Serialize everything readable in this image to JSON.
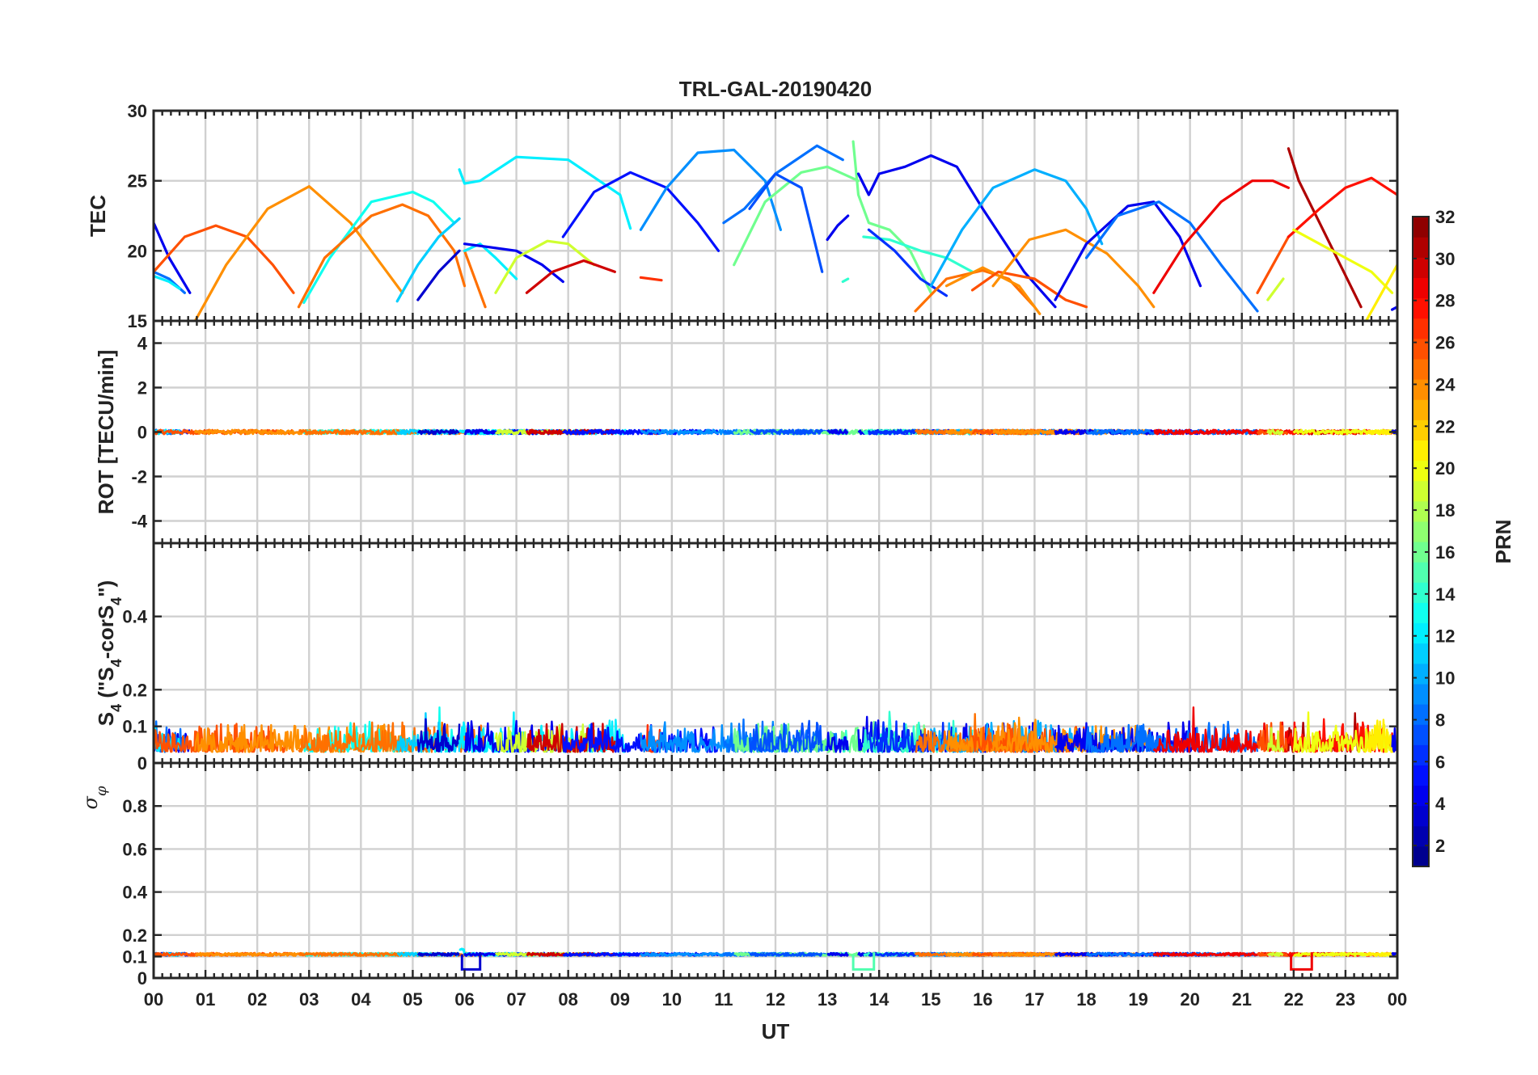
{
  "chart_data": {
    "type": "line",
    "title": "TRL-GAL-20190420",
    "xlabel": "UT",
    "xlim": [
      0,
      24
    ],
    "x_tick_labels": [
      "00",
      "01",
      "02",
      "03",
      "04",
      "05",
      "06",
      "07",
      "08",
      "09",
      "10",
      "11",
      "12",
      "13",
      "14",
      "15",
      "16",
      "17",
      "18",
      "19",
      "20",
      "21",
      "22",
      "23",
      "00"
    ],
    "colorbar": {
      "label": "PRN",
      "range": [
        1,
        32
      ],
      "tick_labels": [
        "2",
        "4",
        "6",
        "8",
        "10",
        "12",
        "14",
        "16",
        "18",
        "20",
        "22",
        "24",
        "26",
        "28",
        "30",
        "32"
      ]
    },
    "panels": [
      {
        "ylabel": "TEC",
        "ylim": [
          15,
          30
        ],
        "y_tick_labels": [
          "15",
          "20",
          "25",
          "30"
        ],
        "grid": true,
        "series": [
          {
            "prn": 4,
            "x": [
              0.0,
              0.3,
              0.7
            ],
            "y": [
              22.0,
              19.5,
              17.0
            ]
          },
          {
            "prn": 8,
            "x": [
              0.0,
              0.3,
              0.6
            ],
            "y": [
              18.5,
              18.0,
              17.0
            ]
          },
          {
            "prn": 12,
            "x": [
              0.0,
              0.3,
              0.5
            ],
            "y": [
              18.2,
              17.8,
              17.3
            ]
          },
          {
            "prn": 26,
            "x": [
              0.0,
              0.6,
              1.2,
              1.8,
              2.3,
              2.7
            ],
            "y": [
              18.5,
              21.0,
              21.8,
              21.0,
              19.0,
              17.0
            ]
          },
          {
            "prn": 24,
            "x": [
              0.8,
              1.4,
              2.2,
              3.0,
              3.8,
              4.4,
              4.8
            ],
            "y": [
              15.0,
              19.0,
              23.0,
              24.6,
              22.0,
              19.0,
              17.0
            ]
          },
          {
            "prn": 13,
            "x": [
              2.9,
              3.4,
              4.2,
              5.0,
              5.4,
              5.8
            ],
            "y": [
              16.3,
              19.5,
              23.5,
              24.2,
              23.5,
              22.0
            ]
          },
          {
            "prn": 25,
            "x": [
              2.8,
              3.3,
              4.2,
              4.8,
              5.3,
              5.8,
              6.0
            ],
            "y": [
              16.0,
              19.5,
              22.5,
              23.3,
              22.5,
              20.0,
              17.5
            ]
          },
          {
            "prn": 11,
            "x": [
              4.7,
              5.1,
              5.5,
              5.9
            ],
            "y": [
              16.4,
              19.0,
              21.0,
              22.3
            ]
          },
          {
            "prn": 3,
            "x": [
              5.1,
              5.5,
              5.9
            ],
            "y": [
              16.5,
              18.5,
              20.0
            ]
          },
          {
            "prn": 12,
            "x": [
              5.9,
              6.0,
              6.3,
              7.0,
              8.0,
              9.0,
              9.2
            ],
            "y": [
              25.8,
              24.8,
              25.0,
              26.7,
              26.5,
              24.0,
              21.6
            ]
          },
          {
            "prn": 25,
            "x": [
              6.0,
              6.2,
              6.4
            ],
            "y": [
              20.0,
              18.0,
              16.0
            ]
          },
          {
            "prn": 12,
            "x": [
              6.0,
              6.3,
              6.6,
              7.0
            ],
            "y": [
              20.0,
              20.5,
              19.5,
              18.0
            ]
          },
          {
            "prn": 4,
            "x": [
              6.0,
              6.4,
              7.0,
              7.5,
              7.9
            ],
            "y": [
              20.5,
              20.3,
              20.0,
              19.0,
              17.8
            ]
          },
          {
            "prn": 19,
            "x": [
              6.6,
              7.0,
              7.6,
              8.0,
              8.5
            ],
            "y": [
              17.0,
              19.5,
              20.7,
              20.5,
              19.0
            ]
          },
          {
            "prn": 30,
            "x": [
              7.2,
              7.7,
              8.3,
              8.9
            ],
            "y": [
              17.0,
              18.5,
              19.3,
              18.5
            ]
          },
          {
            "prn": 27,
            "x": [
              9.4,
              9.8
            ],
            "y": [
              18.1,
              17.9
            ]
          },
          {
            "prn": 5,
            "x": [
              7.9,
              8.5,
              9.2,
              9.9,
              10.5,
              10.9
            ],
            "y": [
              21.0,
              24.2,
              25.6,
              24.5,
              22.0,
              20.0
            ]
          },
          {
            "prn": 9,
            "x": [
              9.4,
              9.9,
              10.5,
              11.2,
              11.8,
              12.1
            ],
            "y": [
              21.5,
              24.5,
              27.0,
              27.2,
              25.0,
              21.5
            ]
          },
          {
            "prn": 8,
            "x": [
              11.0,
              11.4,
              12.0,
              12.8,
              13.3
            ],
            "y": [
              22.0,
              23.0,
              25.5,
              27.5,
              26.5
            ]
          },
          {
            "prn": 16,
            "x": [
              11.2,
              11.8,
              12.5,
              13.0,
              13.6
            ],
            "y": [
              19.0,
              23.5,
              25.6,
              26.0,
              25.0
            ]
          },
          {
            "prn": 7,
            "x": [
              11.5,
              12.0,
              12.5,
              12.9
            ],
            "y": [
              23.0,
              25.5,
              24.5,
              18.5
            ]
          },
          {
            "prn": 14,
            "x": [
              13.3,
              13.4
            ],
            "y": [
              17.8,
              18.0
            ]
          },
          {
            "prn": 4,
            "x": [
              13.0,
              13.2,
              13.4
            ],
            "y": [
              20.8,
              21.8,
              22.5
            ]
          },
          {
            "prn": 16,
            "x": [
              13.5,
              13.6,
              13.8,
              14.2,
              14.6,
              15.0
            ],
            "y": [
              27.8,
              24.0,
              22.0,
              21.5,
              20.0,
              17.0
            ]
          },
          {
            "prn": 4,
            "x": [
              13.6,
              13.8,
              14.0,
              14.5,
              15.0,
              15.5,
              16.0,
              16.8,
              17.4
            ],
            "y": [
              25.5,
              24.0,
              25.5,
              26.0,
              26.8,
              26.0,
              23.0,
              18.5,
              16.0
            ]
          },
          {
            "prn": 14,
            "x": [
              13.7,
              14.2,
              14.8,
              15.3,
              15.8
            ],
            "y": [
              21.0,
              20.8,
              20.0,
              19.5,
              18.5
            ]
          },
          {
            "prn": 6,
            "x": [
              13.8,
              14.3,
              14.8,
              15.3
            ],
            "y": [
              21.5,
              20.0,
              18.0,
              16.8
            ]
          },
          {
            "prn": 10,
            "x": [
              15.0,
              15.6,
              16.2,
              17.0,
              17.6,
              18.0,
              18.3
            ],
            "y": [
              17.5,
              21.5,
              24.5,
              25.8,
              25.0,
              23.0,
              20.5
            ]
          },
          {
            "prn": 25,
            "x": [
              14.7,
              15.3,
              16.0,
              16.5,
              17.0
            ],
            "y": [
              15.7,
              18.0,
              18.6,
              18.0,
              16.0
            ]
          },
          {
            "prn": 24,
            "x": [
              15.3,
              16.0,
              16.7,
              17.1
            ],
            "y": [
              17.5,
              18.8,
              17.5,
              15.5
            ]
          },
          {
            "prn": 26,
            "x": [
              15.8,
              16.3,
              17.0,
              17.6,
              18.0
            ],
            "y": [
              17.2,
              18.5,
              18.0,
              16.5,
              16.0
            ]
          },
          {
            "prn": 24,
            "x": [
              16.2,
              16.9,
              17.6,
              18.4,
              19.0,
              19.3
            ],
            "y": [
              17.5,
              20.8,
              21.5,
              19.8,
              17.5,
              16.0
            ]
          },
          {
            "prn": 4,
            "x": [
              17.4,
              18.0,
              18.8,
              19.3,
              19.8,
              20.2
            ],
            "y": [
              16.5,
              20.5,
              23.2,
              23.5,
              21.0,
              17.5
            ]
          },
          {
            "prn": 8,
            "x": [
              18.0,
              18.6,
              19.4,
              20.0,
              20.6,
              21.3
            ],
            "y": [
              19.5,
              22.5,
              23.5,
              22.0,
              19.0,
              15.7
            ]
          },
          {
            "prn": 29,
            "x": [
              19.3,
              19.9,
              20.6,
              21.2,
              21.6,
              21.9
            ],
            "y": [
              17.0,
              20.5,
              23.5,
              25.0,
              25.0,
              24.5
            ]
          },
          {
            "prn": 26,
            "x": [
              21.3,
              21.6,
              21.9
            ],
            "y": [
              17.0,
              19.0,
              21.0
            ]
          },
          {
            "prn": 19,
            "x": [
              21.5,
              21.8
            ],
            "y": [
              16.5,
              18.0
            ]
          },
          {
            "prn": 31,
            "x": [
              21.9,
              22.1,
              22.5,
              22.9,
              23.3
            ],
            "y": [
              27.3,
              25.0,
              22.0,
              19.0,
              16.0
            ]
          },
          {
            "prn": 28,
            "x": [
              21.9,
              22.5,
              23.0,
              23.5,
              24.0
            ],
            "y": [
              21.0,
              23.0,
              24.5,
              25.2,
              24.0
            ]
          },
          {
            "prn": 20,
            "x": [
              22.0,
              22.5,
              23.0,
              23.5,
              23.9
            ],
            "y": [
              21.5,
              20.5,
              19.5,
              18.5,
              17.0
            ]
          },
          {
            "prn": 21,
            "x": [
              23.4,
              23.7,
              24.0
            ],
            "y": [
              15.0,
              17.0,
              19.0
            ]
          },
          {
            "prn": 4,
            "x": [
              23.9,
              24.0
            ],
            "y": [
              15.8,
              16.0
            ]
          }
        ]
      },
      {
        "ylabel": "ROT [TECU/min]",
        "ylim": [
          -5,
          5
        ],
        "y_tick_labels": [
          "-4",
          "-2",
          "0",
          "2",
          "4"
        ],
        "grid": true,
        "note_values": "noisy traces hugging 0 TECU/min, amplitude ~0.1-0.3"
      },
      {
        "ylabel": "S4 (\"S4-corS4\")",
        "ylabel_base": "S",
        "ylabel_sub": "4",
        "ylabel_rest_1": " (\"S",
        "ylabel_rest_2": "-corS",
        "ylabel_rest_3": "\")",
        "ylim": [
          0,
          0.6
        ],
        "y_tick_labels": [
          "0",
          "0.1",
          "0.2",
          "0.4"
        ],
        "grid": true
      },
      {
        "ylabel": "σφ",
        "ylabel_sigma": "σ",
        "ylabel_phi": "φ",
        "ylim": [
          0,
          1
        ],
        "y_tick_labels": [
          "0",
          "0.1",
          "0.2",
          "0.4",
          "0.6",
          "0.8"
        ],
        "grid": true
      }
    ]
  }
}
